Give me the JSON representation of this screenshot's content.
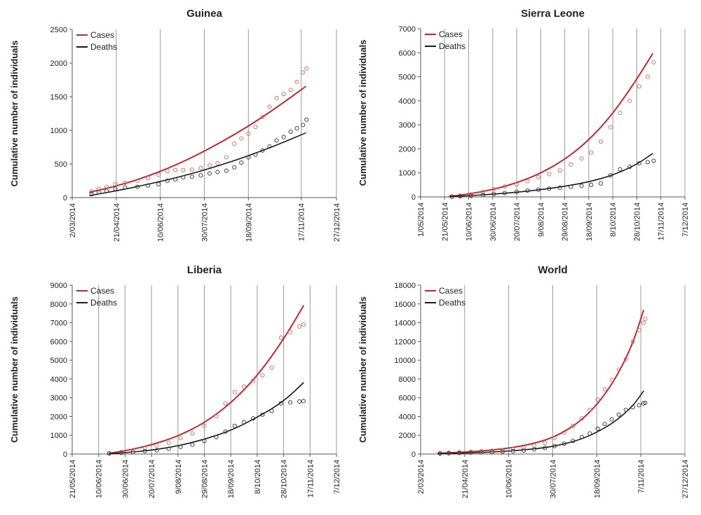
{
  "colors": {
    "cases": "#c0282d",
    "deaths": "#1a1a1a",
    "cases_points": "#cf6a6a",
    "deaths_points": "#333333",
    "grid": "#9a9a9a",
    "axis": "#555555"
  },
  "chart_data": [
    {
      "type": "line",
      "title": "Guinea",
      "ylabel": "Cumulative number of individuals",
      "xlabel": "",
      "ylim": [
        0,
        2500
      ],
      "yticks": [
        0,
        500,
        1000,
        1500,
        2000,
        2500
      ],
      "xlim": [
        "2014-03-02",
        "2014-12-27"
      ],
      "xticks": [
        "2/03/2014",
        "21/04/2014",
        "10/06/2014",
        "30/07/2014",
        "18/09/2014",
        "17/11/2014",
        "27/12/2014"
      ],
      "xtick_dates": [
        "2014-03-02",
        "2014-04-21",
        "2014-06-10",
        "2014-07-30",
        "2014-09-18",
        "2014-11-17",
        "2014-12-27"
      ],
      "grid": true,
      "legend": {
        "position": "top-left",
        "entries": [
          "Cases",
          "Deaths"
        ]
      },
      "series": [
        {
          "name": "Cases",
          "kind": "model-line",
          "x": [
            "2014-03-22",
            "2014-04-21",
            "2014-05-21",
            "2014-06-20",
            "2014-07-20",
            "2014-08-19",
            "2014-09-18",
            "2014-10-18",
            "2014-11-22"
          ],
          "values": [
            80,
            170,
            290,
            440,
            620,
            830,
            1060,
            1320,
            1650
          ]
        },
        {
          "name": "Deaths",
          "kind": "model-line",
          "x": [
            "2014-03-22",
            "2014-04-21",
            "2014-05-21",
            "2014-06-20",
            "2014-07-20",
            "2014-08-19",
            "2014-09-18",
            "2014-10-18",
            "2014-11-22"
          ],
          "values": [
            30,
            100,
            180,
            270,
            370,
            490,
            620,
            770,
            960
          ]
        },
        {
          "name": "Cases",
          "kind": "observed-points",
          "x": [
            "2014-03-24",
            "2014-04-01",
            "2014-04-10",
            "2014-04-20",
            "2014-05-01",
            "2014-05-15",
            "2014-05-27",
            "2014-06-08",
            "2014-06-18",
            "2014-06-27",
            "2014-07-06",
            "2014-07-16",
            "2014-07-26",
            "2014-08-05",
            "2014-08-14",
            "2014-08-24",
            "2014-09-02",
            "2014-09-10",
            "2014-09-18",
            "2014-09-26",
            "2014-10-04",
            "2014-10-12",
            "2014-10-20",
            "2014-10-28",
            "2014-11-05",
            "2014-11-12",
            "2014-11-19",
            "2014-11-23"
          ],
          "values": [
            90,
            130,
            160,
            200,
            220,
            250,
            290,
            340,
            395,
            410,
            410,
            415,
            440,
            480,
            510,
            600,
            800,
            880,
            950,
            1050,
            1200,
            1350,
            1480,
            1540,
            1600,
            1720,
            1860,
            1920
          ]
        },
        {
          "name": "Deaths",
          "kind": "observed-points",
          "x": [
            "2014-03-24",
            "2014-04-01",
            "2014-04-10",
            "2014-04-20",
            "2014-05-01",
            "2014-05-15",
            "2014-05-27",
            "2014-06-08",
            "2014-06-18",
            "2014-06-27",
            "2014-07-06",
            "2014-07-16",
            "2014-07-26",
            "2014-08-05",
            "2014-08-14",
            "2014-08-24",
            "2014-09-02",
            "2014-09-10",
            "2014-09-18",
            "2014-09-26",
            "2014-10-04",
            "2014-10-12",
            "2014-10-20",
            "2014-10-28",
            "2014-11-05",
            "2014-11-12",
            "2014-11-19",
            "2014-11-23"
          ],
          "values": [
            50,
            80,
            100,
            130,
            150,
            160,
            180,
            200,
            250,
            270,
            300,
            310,
            330,
            360,
            380,
            400,
            450,
            520,
            600,
            640,
            700,
            760,
            850,
            900,
            980,
            1030,
            1080,
            1160
          ]
        }
      ]
    },
    {
      "type": "line",
      "title": "Sierra Leone",
      "ylabel": "Cumulative number of individuals",
      "xlabel": "",
      "ylim": [
        0,
        7000
      ],
      "yticks": [
        0,
        1000,
        2000,
        3000,
        4000,
        5000,
        6000,
        7000
      ],
      "xlim": [
        "2014-05-01",
        "2014-12-07"
      ],
      "xticks": [
        "1/05/2014",
        "21/05/2014",
        "10/06/2014",
        "30/06/2014",
        "20/07/2014",
        "9/08/2014",
        "29/08/2014",
        "18/09/2014",
        "8/10/2014",
        "28/10/2014",
        "17/11/2014",
        "7/12/2014"
      ],
      "xtick_dates": [
        "2014-05-01",
        "2014-05-21",
        "2014-06-10",
        "2014-06-30",
        "2014-07-20",
        "2014-08-09",
        "2014-08-29",
        "2014-09-18",
        "2014-10-08",
        "2014-10-28",
        "2014-11-17",
        "2014-12-07"
      ],
      "grid": true,
      "legend": {
        "position": "top-left",
        "entries": [
          "Cases",
          "Deaths"
        ]
      },
      "series": [
        {
          "name": "Cases",
          "kind": "model-line",
          "x": [
            "2014-05-25",
            "2014-06-10",
            "2014-06-30",
            "2014-07-20",
            "2014-08-09",
            "2014-08-29",
            "2014-09-18",
            "2014-10-08",
            "2014-10-28",
            "2014-11-10"
          ],
          "values": [
            20,
            120,
            300,
            580,
            980,
            1550,
            2350,
            3450,
            4900,
            5950
          ]
        },
        {
          "name": "Deaths",
          "kind": "model-line",
          "x": [
            "2014-05-25",
            "2014-06-10",
            "2014-06-30",
            "2014-07-20",
            "2014-08-09",
            "2014-08-29",
            "2014-09-18",
            "2014-10-08",
            "2014-10-28",
            "2014-11-10"
          ],
          "values": [
            10,
            50,
            110,
            190,
            300,
            440,
            620,
            900,
            1350,
            1800
          ]
        },
        {
          "name": "Cases",
          "kind": "observed-points",
          "x": [
            "2014-05-27",
            "2014-06-03",
            "2014-06-12",
            "2014-06-22",
            "2014-07-01",
            "2014-07-10",
            "2014-07-20",
            "2014-07-29",
            "2014-08-07",
            "2014-08-16",
            "2014-08-25",
            "2014-09-03",
            "2014-09-12",
            "2014-09-20",
            "2014-09-28",
            "2014-10-06",
            "2014-10-14",
            "2014-10-22",
            "2014-10-30",
            "2014-11-06",
            "2014-11-11"
          ],
          "values": [
            20,
            50,
            100,
            200,
            320,
            430,
            520,
            650,
            820,
            950,
            1100,
            1350,
            1600,
            1850,
            2300,
            2900,
            3500,
            4000,
            4600,
            5000,
            5600
          ]
        },
        {
          "name": "Deaths",
          "kind": "observed-points",
          "x": [
            "2014-05-27",
            "2014-06-03",
            "2014-06-12",
            "2014-06-22",
            "2014-07-01",
            "2014-07-10",
            "2014-07-20",
            "2014-07-29",
            "2014-08-07",
            "2014-08-16",
            "2014-08-25",
            "2014-09-03",
            "2014-09-12",
            "2014-09-20",
            "2014-09-28",
            "2014-10-06",
            "2014-10-14",
            "2014-10-22",
            "2014-10-30",
            "2014-11-06",
            "2014-11-11"
          ],
          "values": [
            10,
            20,
            40,
            80,
            120,
            160,
            210,
            260,
            300,
            340,
            380,
            420,
            460,
            500,
            560,
            900,
            1150,
            1250,
            1400,
            1450,
            1500
          ]
        }
      ]
    },
    {
      "type": "line",
      "title": "Liberia",
      "ylabel": "Cumulative number of individuals",
      "xlabel": "",
      "ylim": [
        0,
        9000
      ],
      "yticks": [
        0,
        1000,
        2000,
        3000,
        4000,
        5000,
        6000,
        7000,
        8000,
        9000
      ],
      "xlim": [
        "2014-05-21",
        "2014-12-07"
      ],
      "xticks": [
        "21/05/2014",
        "10/06/2014",
        "30/06/2014",
        "20/07/2014",
        "9/08/2014",
        "29/08/2014",
        "18/09/2014",
        "8/10/2014",
        "28/10/2014",
        "17/11/2014",
        "7/12/2014"
      ],
      "xtick_dates": [
        "2014-05-21",
        "2014-06-10",
        "2014-06-30",
        "2014-07-20",
        "2014-08-09",
        "2014-08-29",
        "2014-09-18",
        "2014-10-08",
        "2014-10-28",
        "2014-11-17",
        "2014-12-07"
      ],
      "grid": true,
      "legend": {
        "position": "top-left",
        "entries": [
          "Cases",
          "Deaths"
        ]
      },
      "series": [
        {
          "name": "Cases",
          "kind": "model-line",
          "x": [
            "2014-06-18",
            "2014-06-30",
            "2014-07-20",
            "2014-08-09",
            "2014-08-29",
            "2014-09-18",
            "2014-10-08",
            "2014-10-28",
            "2014-11-12"
          ],
          "values": [
            40,
            170,
            480,
            950,
            1650,
            2700,
            4150,
            6100,
            7900
          ]
        },
        {
          "name": "Deaths",
          "kind": "model-line",
          "x": [
            "2014-06-18",
            "2014-06-30",
            "2014-07-20",
            "2014-08-09",
            "2014-08-29",
            "2014-09-18",
            "2014-10-08",
            "2014-10-28",
            "2014-11-12"
          ],
          "values": [
            20,
            70,
            200,
            430,
            780,
            1250,
            1950,
            2800,
            3800
          ]
        },
        {
          "name": "Cases",
          "kind": "observed-points",
          "x": [
            "2014-06-18",
            "2014-06-27",
            "2014-07-06",
            "2014-07-15",
            "2014-07-24",
            "2014-08-02",
            "2014-08-11",
            "2014-08-20",
            "2014-08-29",
            "2014-09-07",
            "2014-09-14",
            "2014-09-21",
            "2014-09-28",
            "2014-10-05",
            "2014-10-12",
            "2014-10-19",
            "2014-10-26",
            "2014-11-02",
            "2014-11-09",
            "2014-11-12"
          ],
          "values": [
            50,
            100,
            200,
            300,
            450,
            600,
            850,
            1100,
            1500,
            2000,
            2700,
            3300,
            3600,
            3900,
            4200,
            4600,
            6200,
            6500,
            6800,
            6900
          ]
        },
        {
          "name": "Deaths",
          "kind": "observed-points",
          "x": [
            "2014-06-18",
            "2014-06-27",
            "2014-07-06",
            "2014-07-15",
            "2014-07-24",
            "2014-08-02",
            "2014-08-11",
            "2014-08-20",
            "2014-08-29",
            "2014-09-07",
            "2014-09-14",
            "2014-09-21",
            "2014-09-28",
            "2014-10-05",
            "2014-10-12",
            "2014-10-19",
            "2014-10-26",
            "2014-11-02",
            "2014-11-09",
            "2014-11-12"
          ],
          "values": [
            30,
            60,
            100,
            150,
            200,
            280,
            380,
            500,
            700,
            900,
            1200,
            1500,
            1700,
            1900,
            2100,
            2300,
            2700,
            2750,
            2800,
            2820
          ]
        }
      ]
    },
    {
      "type": "line",
      "title": "World",
      "ylabel": "Cumulative number of individuals",
      "xlabel": "",
      "ylim": [
        0,
        18000
      ],
      "yticks": [
        0,
        2000,
        4000,
        6000,
        8000,
        10000,
        12000,
        14000,
        16000,
        18000
      ],
      "xlim": [
        "2014-03-02",
        "2014-12-27"
      ],
      "xticks": [
        "2/03/2014",
        "21/04/2014",
        "10/06/2014",
        "30/07/2014",
        "18/09/2014",
        "7/11/2014",
        "27/12/2014"
      ],
      "xtick_dates": [
        "2014-03-02",
        "2014-04-21",
        "2014-06-10",
        "2014-07-30",
        "2014-09-18",
        "2014-11-07",
        "2014-12-27"
      ],
      "grid": true,
      "legend": {
        "position": "top-left",
        "entries": [
          "Cases",
          "Deaths"
        ]
      },
      "series": [
        {
          "name": "Cases",
          "kind": "model-line",
          "x": [
            "2014-03-22",
            "2014-04-21",
            "2014-05-21",
            "2014-06-20",
            "2014-07-20",
            "2014-08-09",
            "2014-08-29",
            "2014-09-18",
            "2014-10-08",
            "2014-10-28",
            "2014-11-10"
          ],
          "values": [
            80,
            200,
            400,
            750,
            1400,
            2200,
            3400,
            5200,
            7800,
            11500,
            15300
          ]
        },
        {
          "name": "Deaths",
          "kind": "model-line",
          "x": [
            "2014-03-22",
            "2014-04-21",
            "2014-05-21",
            "2014-06-20",
            "2014-07-20",
            "2014-08-09",
            "2014-08-29",
            "2014-09-18",
            "2014-10-08",
            "2014-10-28",
            "2014-11-10"
          ],
          "values": [
            40,
            100,
            200,
            380,
            650,
            1000,
            1500,
            2300,
            3400,
            5000,
            6700
          ]
        },
        {
          "name": "Cases",
          "kind": "observed-points",
          "x": [
            "2014-03-24",
            "2014-04-03",
            "2014-04-15",
            "2014-04-28",
            "2014-05-10",
            "2014-05-22",
            "2014-06-03",
            "2014-06-15",
            "2014-06-27",
            "2014-07-09",
            "2014-07-21",
            "2014-08-01",
            "2014-08-12",
            "2014-08-22",
            "2014-09-01",
            "2014-09-10",
            "2014-09-19",
            "2014-09-27",
            "2014-10-05",
            "2014-10-13",
            "2014-10-21",
            "2014-10-29",
            "2014-11-05",
            "2014-11-10",
            "2014-11-12"
          ],
          "values": [
            100,
            150,
            200,
            250,
            300,
            350,
            400,
            500,
            650,
            900,
            1200,
            1700,
            2300,
            3000,
            3800,
            4700,
            5800,
            6900,
            7900,
            9000,
            10100,
            12000,
            13200,
            14000,
            14400
          ]
        },
        {
          "name": "Deaths",
          "kind": "observed-points",
          "x": [
            "2014-03-24",
            "2014-04-03",
            "2014-04-15",
            "2014-04-28",
            "2014-05-10",
            "2014-05-22",
            "2014-06-03",
            "2014-06-15",
            "2014-06-27",
            "2014-07-09",
            "2014-07-21",
            "2014-08-01",
            "2014-08-12",
            "2014-08-22",
            "2014-09-01",
            "2014-09-10",
            "2014-09-19",
            "2014-09-27",
            "2014-10-05",
            "2014-10-13",
            "2014-10-21",
            "2014-10-29",
            "2014-11-05",
            "2014-11-10",
            "2014-11-12"
          ],
          "values": [
            50,
            80,
            110,
            150,
            180,
            210,
            250,
            300,
            380,
            500,
            650,
            850,
            1100,
            1400,
            1800,
            2200,
            2700,
            3200,
            3700,
            4200,
            4700,
            5000,
            5200,
            5400,
            5450
          ]
        }
      ]
    }
  ]
}
